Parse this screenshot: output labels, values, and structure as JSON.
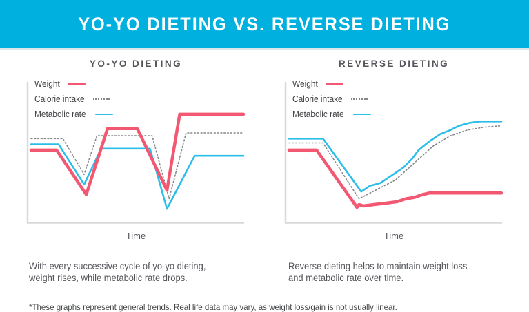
{
  "banner": {
    "title": "YO-YO DIETING VS. REVERSE DIETING",
    "bg_color": "#00b0df",
    "text_color": "#ffffff"
  },
  "legend": [
    {
      "label": "Weight",
      "color": "#f25872",
      "style": "solid-thick"
    },
    {
      "label": "Calorie intake",
      "color": "#85878a",
      "style": "dotted"
    },
    {
      "label": "Metabolic rate",
      "color": "#2cbde8",
      "style": "solid"
    }
  ],
  "chart_data": [
    {
      "type": "line",
      "title": "YO-YO DIETING",
      "xlabel": "Time",
      "ylabel": "",
      "axes_note": "Axes have no numeric ticks; x = relative time 0-100, y = relative level 0-100 (0 = x-axis, 100 = top of plot)",
      "grid": false,
      "legend_position": "top-left inside plot",
      "series": [
        {
          "name": "Calorie intake",
          "color": "#85878a",
          "style": "dotted",
          "points": [
            [
              0,
              59
            ],
            [
              15,
              59
            ],
            [
              25,
              34
            ],
            [
              31,
              61
            ],
            [
              57,
              61
            ],
            [
              65,
              17
            ],
            [
              73,
              63
            ],
            [
              100,
              63
            ]
          ]
        },
        {
          "name": "Metabolic rate",
          "color": "#2cbde8",
          "style": "solid",
          "points": [
            [
              0,
              55
            ],
            [
              13,
              55
            ],
            [
              25,
              27
            ],
            [
              33,
              52
            ],
            [
              56,
              52
            ],
            [
              64,
              10
            ],
            [
              77,
              47
            ],
            [
              100,
              47
            ]
          ]
        },
        {
          "name": "Weight",
          "color": "#f25872",
          "style": "solid-thick",
          "points": [
            [
              0,
              51
            ],
            [
              12,
              51
            ],
            [
              26,
              20
            ],
            [
              36,
              66
            ],
            [
              50,
              66
            ],
            [
              64,
              23
            ],
            [
              70,
              76
            ],
            [
              100,
              76
            ]
          ]
        }
      ]
    },
    {
      "type": "line",
      "title": "REVERSE DIETING",
      "xlabel": "Time",
      "ylabel": "",
      "axes_note": "Axes have no numeric ticks; x = relative time 0-100, y = relative level 0-100 (0 = x-axis, 100 = top of plot)",
      "grid": false,
      "legend_position": "top-left inside plot",
      "series": [
        {
          "name": "Calorie intake",
          "color": "#85878a",
          "style": "dotted",
          "points": [
            [
              0,
              56
            ],
            [
              16,
              56
            ],
            [
              33,
              17
            ],
            [
              42,
              24
            ],
            [
              50,
              30
            ],
            [
              59,
              42
            ],
            [
              68,
              54
            ],
            [
              76,
              61
            ],
            [
              84,
              65
            ],
            [
              92,
              67
            ],
            [
              100,
              68
            ]
          ]
        },
        {
          "name": "Metabolic rate",
          "color": "#2cbde8",
          "style": "solid",
          "points": [
            [
              0,
              59
            ],
            [
              16,
              59
            ],
            [
              34,
              22
            ],
            [
              38,
              26
            ],
            [
              43,
              28
            ],
            [
              48,
              33
            ],
            [
              54,
              39
            ],
            [
              58,
              45
            ],
            [
              61,
              51
            ],
            [
              66,
              57
            ],
            [
              71,
              62
            ],
            [
              76,
              65
            ],
            [
              80,
              68
            ],
            [
              85,
              70
            ],
            [
              90,
              71
            ],
            [
              100,
              71
            ]
          ]
        },
        {
          "name": "Weight",
          "color": "#f25872",
          "style": "solid-thick",
          "points": [
            [
              0,
              51
            ],
            [
              13,
              51
            ],
            [
              32,
              11
            ],
            [
              33,
              13
            ],
            [
              35,
              12
            ],
            [
              40,
              13
            ],
            [
              46,
              14
            ],
            [
              51,
              15
            ],
            [
              55,
              17
            ],
            [
              59,
              18
            ],
            [
              63,
              20
            ],
            [
              66,
              21
            ],
            [
              100,
              21
            ]
          ]
        }
      ]
    }
  ],
  "captions": {
    "left": "With every successive cycle of yo-yo dieting,\nweight rises, while metabolic rate drops.",
    "right": "Reverse dieting helps to maintain weight loss\nand metabolic rate over time."
  },
  "footnote": "*These graphs represent general trends. Real life data may vary, as weight loss/gain is not usually linear.",
  "colors": {
    "axis": "#d8d9da",
    "banner_divider": "#d9e6ea",
    "chart_title": "#54565b",
    "legend_text": "#404245",
    "caption_text": "#54565b",
    "footnote_text": "#444648"
  }
}
